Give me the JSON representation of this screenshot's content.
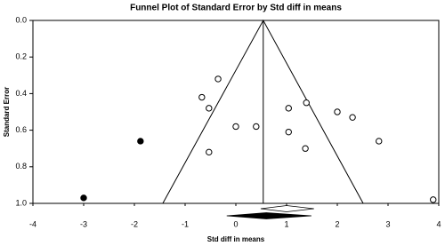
{
  "chart_data": {
    "type": "scatter",
    "title": "Funnel Plot of Standard Error by Std diff in means",
    "x_label": "Std diff in means",
    "y_label": "Standard Error",
    "xlim": [
      -4,
      4
    ],
    "xticks": [
      -4,
      -3,
      -2,
      -1,
      0,
      1,
      2,
      3,
      4
    ],
    "ylim": [
      1.0,
      0.0
    ],
    "yticks": [
      {
        "value": 0.0,
        "label": "0.0"
      },
      0.2,
      0.4,
      0.6,
      0.8,
      {
        "value": 1.0,
        "label": "1.0"
      }
    ],
    "series": [
      {
        "color": "#000000",
        "fill": "#ffffff",
        "x": [
          -0.35,
          -0.67,
          -0.53,
          0.0,
          0.4,
          -0.53,
          1.04,
          1.39,
          1.04,
          1.37,
          2.0,
          2.3,
          2.82,
          3.89
        ],
        "values": [
          0.32,
          0.42,
          0.48,
          0.58,
          0.58,
          0.72,
          0.48,
          0.45,
          0.61,
          0.7,
          0.5,
          0.53,
          0.66,
          0.98
        ]
      },
      {
        "color": "#000000",
        "fill": "#000000",
        "x": [
          -1.88,
          -3.0
        ],
        "values": [
          0.66,
          0.97
        ]
      }
    ],
    "funnel_x": [
      -1.44,
      0.54,
      2.51
    ],
    "funnel_y": [
      1.0,
      0.0,
      1.0
    ],
    "summaries": [
      {
        "fill": "#ffffff",
        "estimate": 1.0,
        "lower": 0.49,
        "upper": 1.54
      },
      {
        "fill": "#000000",
        "estimate": 0.6,
        "lower": -0.18,
        "upper": 1.49
      }
    ]
  }
}
